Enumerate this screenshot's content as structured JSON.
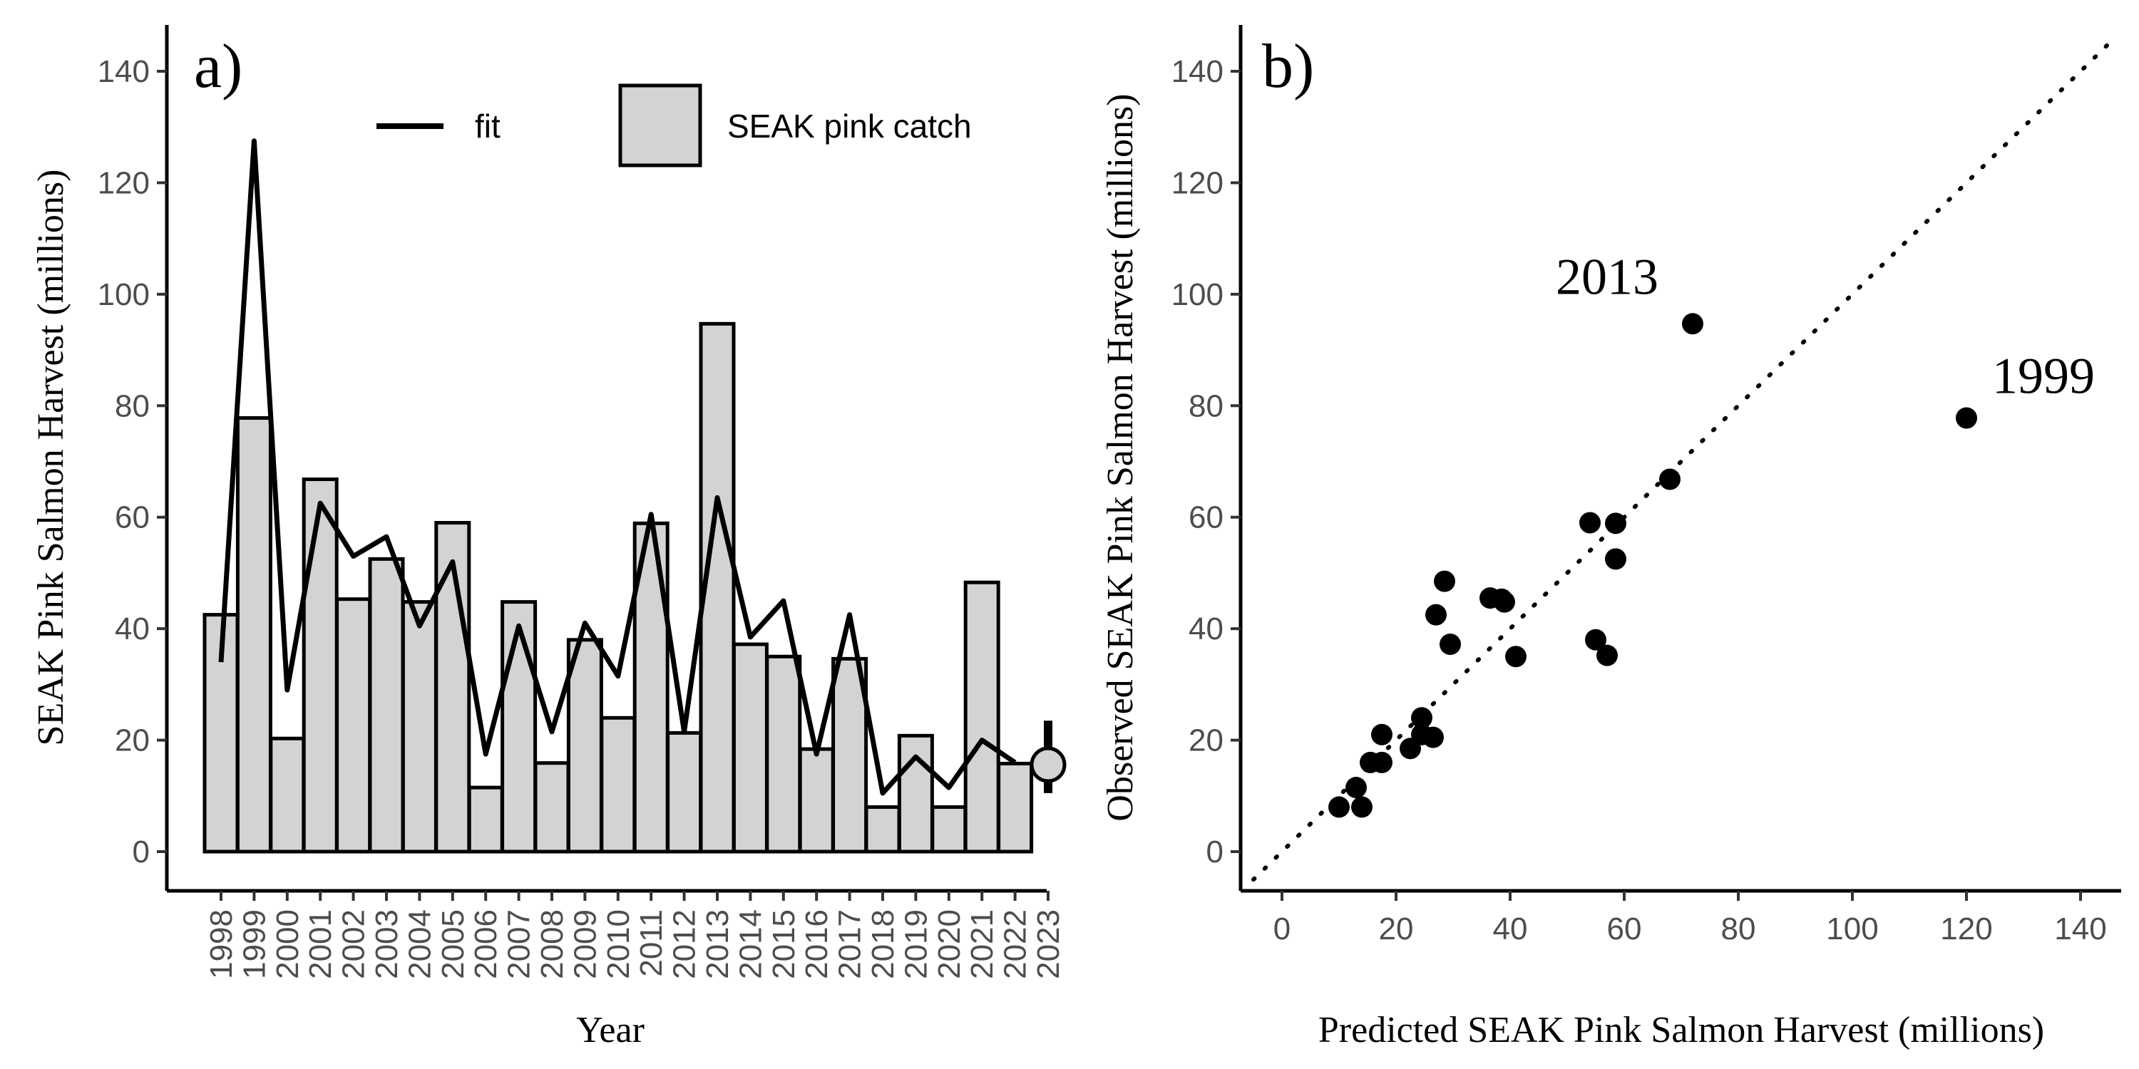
{
  "chart_data": [
    {
      "panel_label": "a)",
      "type": "bar",
      "xlabel": "Year",
      "ylabel": "SEAK Pink Salmon Harvest (millions)",
      "ylim": [
        0,
        140
      ],
      "yticks": [
        0,
        20,
        40,
        60,
        80,
        100,
        120,
        140
      ],
      "categories": [
        "1998",
        "1999",
        "2000",
        "2001",
        "2002",
        "2003",
        "2004",
        "2005",
        "2006",
        "2007",
        "2008",
        "2009",
        "2010",
        "2011",
        "2012",
        "2013",
        "2014",
        "2015",
        "2016",
        "2017",
        "2018",
        "2019",
        "2020",
        "2021",
        "2022",
        "2023"
      ],
      "series": [
        {
          "name": "SEAK pink catch",
          "type": "bar",
          "fill": "#d3d3d3",
          "values": [
            42.5,
            77.8,
            20.3,
            66.8,
            45.3,
            52.5,
            44.8,
            59.0,
            11.5,
            44.8,
            15.9,
            38.0,
            24.0,
            58.9,
            21.3,
            94.7,
            37.2,
            35.0,
            18.4,
            34.6,
            8.0,
            20.8,
            8.0,
            48.3,
            15.8,
            null
          ]
        },
        {
          "name": "fit",
          "type": "line",
          "color": "#000000",
          "values": [
            34,
            127.5,
            29,
            62.5,
            53,
            56.5,
            40.5,
            52,
            17.5,
            40.5,
            21.5,
            41,
            31.5,
            60.5,
            21.5,
            63.5,
            38.5,
            45,
            17.5,
            42.5,
            10.5,
            17,
            11.5,
            20,
            16,
            null
          ]
        }
      ],
      "forecast_2023": {
        "value": 15.6,
        "interval": [
          10.5,
          23.5
        ],
        "fill": "#d3d3d3"
      },
      "legend": {
        "placement": "top",
        "entries": [
          "fit",
          "SEAK pink catch"
        ]
      }
    },
    {
      "panel_label": "b)",
      "type": "scatter",
      "xlabel": "Predicted SEAK Pink Salmon Harvest (millions)",
      "ylabel": "Observed SEAK Pink Salmon Harvest (millions)",
      "xlim": [
        -5,
        147
      ],
      "ylim": [
        -7,
        147
      ],
      "xticks": [
        0,
        20,
        40,
        60,
        80,
        100,
        120,
        140
      ],
      "yticks": [
        0,
        20,
        40,
        60,
        80,
        100,
        120,
        140
      ],
      "reference_line": "1:1 dotted",
      "points": [
        {
          "x": 10,
          "y": 8
        },
        {
          "x": 13,
          "y": 11.5
        },
        {
          "x": 14,
          "y": 8
        },
        {
          "x": 15.5,
          "y": 16
        },
        {
          "x": 17.5,
          "y": 16
        },
        {
          "x": 17.5,
          "y": 21
        },
        {
          "x": 22.5,
          "y": 18.5
        },
        {
          "x": 24.5,
          "y": 24
        },
        {
          "x": 24.5,
          "y": 21
        },
        {
          "x": 26.5,
          "y": 20.5
        },
        {
          "x": 27,
          "y": 42.5
        },
        {
          "x": 28.5,
          "y": 48.5
        },
        {
          "x": 29.5,
          "y": 37.2
        },
        {
          "x": 36.5,
          "y": 45.5
        },
        {
          "x": 38.5,
          "y": 45.3
        },
        {
          "x": 39,
          "y": 44.8
        },
        {
          "x": 41,
          "y": 35
        },
        {
          "x": 54,
          "y": 59
        },
        {
          "x": 55,
          "y": 38
        },
        {
          "x": 57,
          "y": 35.2
        },
        {
          "x": 58.5,
          "y": 58.9
        },
        {
          "x": 58.5,
          "y": 52.5
        },
        {
          "x": 68,
          "y": 66.8
        },
        {
          "x": 72,
          "y": 94.7,
          "label": "2013"
        },
        {
          "x": 120,
          "y": 77.8,
          "label": "1999"
        }
      ]
    }
  ]
}
